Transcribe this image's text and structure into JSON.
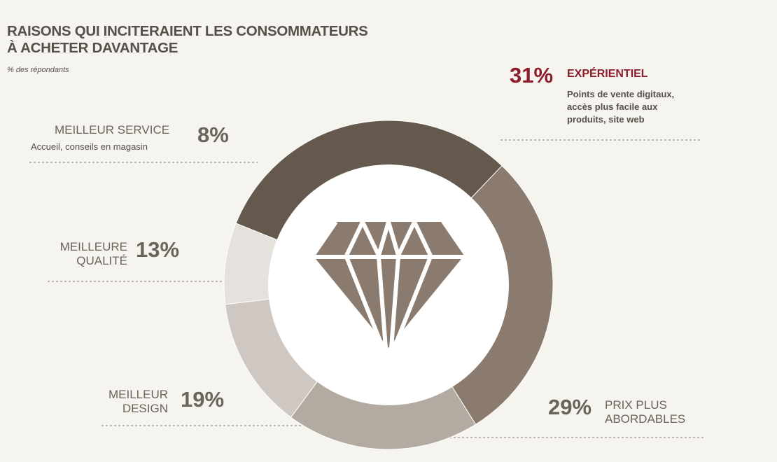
{
  "title_line1": "RAISONS QUI INCITERAIENT LES CONSOMMATEURS",
  "title_line2": "À ACHETER DAVANTAGE",
  "subtitle": "% des répondants",
  "center_icon": "diamond-icon",
  "colors": {
    "accent": "#8a1c2b",
    "text": "#6b635c",
    "background": "#f6f4ef"
  },
  "chart_data": {
    "type": "pie",
    "variant": "donut",
    "unit": "%",
    "slices": [
      {
        "name": "EXPÉRIENTIEL",
        "value": 31,
        "label": "31%",
        "description_lines": [
          "Points de vente digitaux,",
          "accès plus facile aux",
          "produits, site web"
        ],
        "color": "#65584d"
      },
      {
        "name": "PRIX PLUS ABORDABLES",
        "label_lines": [
          "PRIX PLUS",
          "ABORDABLES"
        ],
        "value": 29,
        "label": "29%",
        "color": "#8a7b6e"
      },
      {
        "name": "MEILLEUR DESIGN",
        "label_lines": [
          "MEILLEUR",
          "DESIGN"
        ],
        "value": 19,
        "label": "19%",
        "color": "#b3aaa2"
      },
      {
        "name": "MEILLEURE QUALITÉ",
        "label_lines": [
          "MEILLEURE",
          "QUALITÉ"
        ],
        "value": 13,
        "label": "13%",
        "color": "#cfc8c2"
      },
      {
        "name": "MEILLEUR SERVICE",
        "label_lines": [
          "MEILLEUR SERVICE"
        ],
        "value": 8,
        "label": "8%",
        "description_lines": [
          "Accueil, conseils en magasin"
        ],
        "color": "#e5e1dd"
      }
    ]
  }
}
